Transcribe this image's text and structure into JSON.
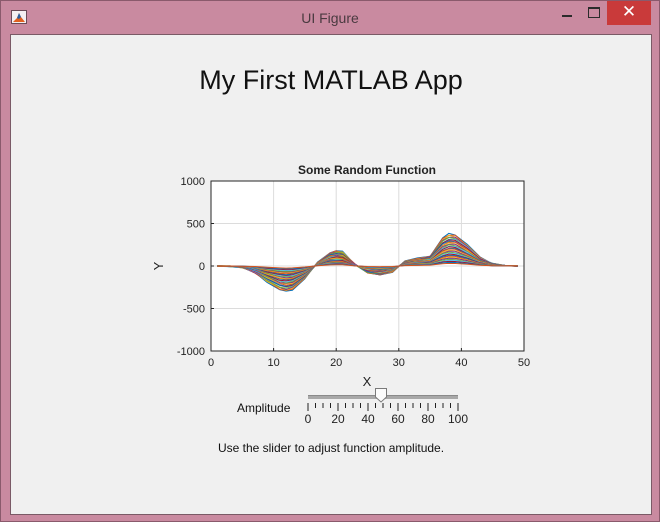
{
  "window": {
    "title": "UI Figure",
    "close_glyph": "✕",
    "titlebar_color": "#c98aa0",
    "close_color": "#c93a3a"
  },
  "app": {
    "heading": "My First MATLAB App",
    "caption": "Use the slider to adjust function amplitude."
  },
  "slider": {
    "label": "Amplitude",
    "value": 50,
    "min": 0,
    "max": 100,
    "tick_labels": [
      "0",
      "20",
      "40",
      "60",
      "80",
      "100"
    ]
  },
  "chart_data": {
    "type": "line",
    "title": "Some Random Function",
    "xlabel": "X",
    "ylabel": "Y",
    "xlim": [
      0,
      50
    ],
    "ylim": [
      -1000,
      1000
    ],
    "xticks": [
      "0",
      "10",
      "20",
      "30",
      "40",
      "50"
    ],
    "yticks": [
      "1000",
      "500",
      "0",
      "-500",
      "-1000"
    ],
    "grid": true,
    "series_count": 30,
    "x": [
      1,
      3,
      5,
      7,
      9,
      11,
      12,
      13,
      15,
      17,
      19,
      20,
      21,
      23,
      25,
      27,
      29,
      31,
      33,
      35,
      37,
      38,
      39,
      41,
      43,
      45,
      47,
      49
    ],
    "envelope": [
      0,
      -4,
      -20,
      -80,
      -190,
      -280,
      -300,
      -280,
      -150,
      40,
      160,
      180,
      170,
      20,
      -80,
      -110,
      -70,
      60,
      90,
      120,
      330,
      380,
      370,
      250,
      100,
      30,
      5,
      0
    ],
    "colors": [
      "#0072bd",
      "#d95319",
      "#edb120",
      "#7e2f8e",
      "#77ac30",
      "#4dbeee",
      "#a2142f"
    ]
  }
}
